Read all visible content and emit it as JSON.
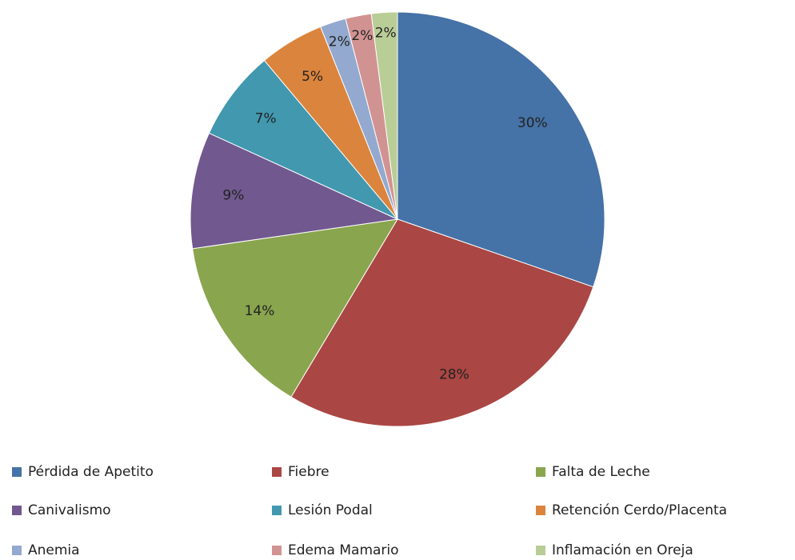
{
  "chart_data": {
    "type": "pie",
    "categories": [
      "Pérdida de Apetito",
      "Fiebre",
      "Falta de Leche",
      "Canivalismo",
      "Lesión Podal",
      "Retención Cerdo/Placenta",
      "Anemia",
      "Edema Mamario",
      "Inflamación en Oreja"
    ],
    "values": [
      30,
      28,
      14,
      9,
      7,
      5,
      2,
      2,
      2
    ],
    "value_labels": [
      "30%",
      "28%",
      "14%",
      "9%",
      "7%",
      "5%",
      "2%",
      "2%",
      "2%"
    ],
    "colors": [
      "#4572a7",
      "#aa4643",
      "#89a54e",
      "#71588f",
      "#4198af",
      "#db843d",
      "#93a9cf",
      "#d19392",
      "#b9cd96"
    ],
    "legend": "bottom"
  }
}
